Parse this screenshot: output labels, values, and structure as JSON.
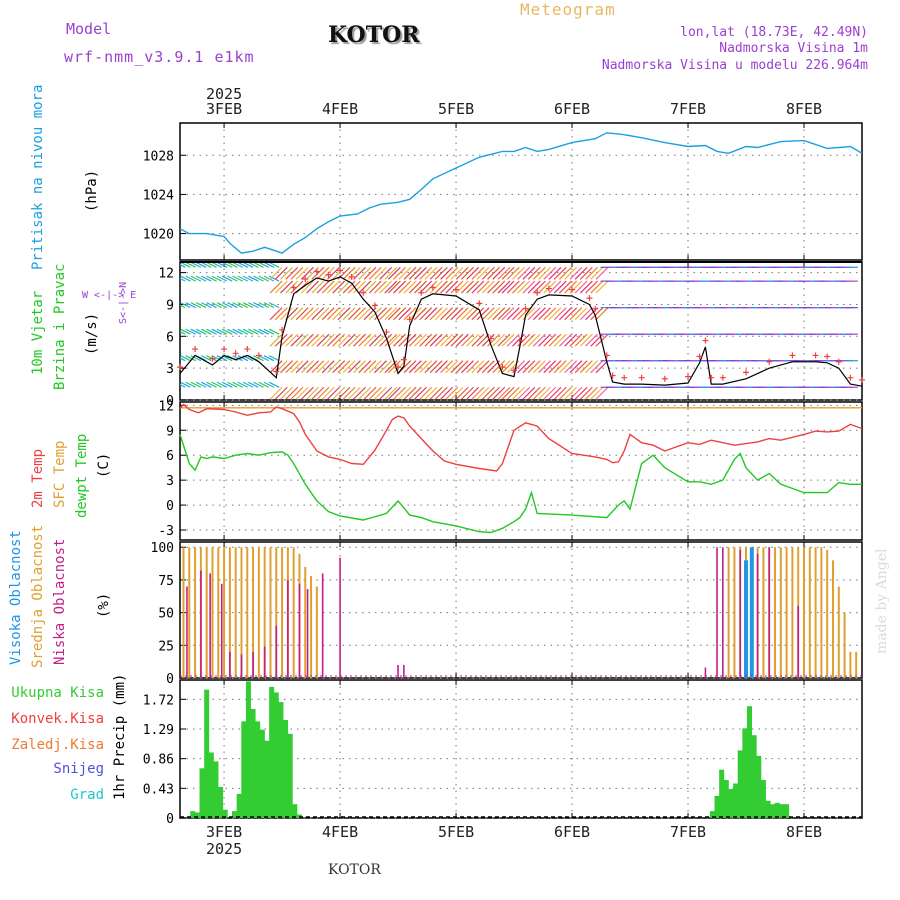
{
  "header": {
    "model_label": "Model",
    "model_name": "wrf-nmm_v3.9.1 e1km",
    "station": "KOTOR",
    "title": "Meteogram",
    "coords": "lon,lat (18.73E, 42.49N)",
    "elevation": "Nadmorska Visina 1m",
    "model_elevation": "Nadmorska Visina u modelu 226.964m",
    "footer_station": "KOTOR",
    "credit": "made by Angel"
  },
  "colors": {
    "pressure": "#1ca0e0",
    "temp2m": "#ef4040",
    "sfc_temp": "#e0a030",
    "dewpoint": "#22c822",
    "cloud_high": "#2096e6",
    "cloud_mid": "#e0a030",
    "cloud_low": "#c0208a",
    "precip_total": "#33cc33",
    "model_color": "#9a40d0",
    "title_color": "#e8b860",
    "info_color": "#9a40d0"
  },
  "chart_data": [
    {
      "type": "line",
      "panel": "pressure",
      "ylabel": "Pritisak na nivou mora",
      "unit": "(hPa)",
      "yticks": [
        1020,
        1024,
        1028
      ],
      "x_day_start": 2.62,
      "x_day_end": 8.5,
      "ylim": [
        1017.3,
        1031.3
      ],
      "x": [
        2.62,
        2.7,
        2.85,
        3.0,
        3.05,
        3.15,
        3.25,
        3.35,
        3.5,
        3.6,
        3.7,
        3.8,
        3.9,
        4.0,
        4.15,
        4.25,
        4.35,
        4.5,
        4.6,
        4.7,
        4.8,
        5.0,
        5.2,
        5.4,
        5.5,
        5.6,
        5.7,
        5.8,
        6.0,
        6.2,
        6.3,
        6.45,
        6.6,
        6.8,
        7.0,
        7.15,
        7.25,
        7.35,
        7.5,
        7.6,
        7.8,
        8.0,
        8.2,
        8.4,
        8.5
      ],
      "values": [
        1020.5,
        1020.0,
        1020.0,
        1019.7,
        1019.0,
        1018.0,
        1018.2,
        1018.6,
        1018.0,
        1018.9,
        1019.6,
        1020.5,
        1021.2,
        1021.8,
        1022.0,
        1022.6,
        1023.0,
        1023.2,
        1023.5,
        1024.5,
        1025.6,
        1026.7,
        1027.8,
        1028.4,
        1028.4,
        1028.8,
        1028.4,
        1028.6,
        1029.3,
        1029.7,
        1030.3,
        1030.1,
        1029.8,
        1029.3,
        1028.9,
        1029.0,
        1028.4,
        1028.2,
        1028.9,
        1028.8,
        1029.4,
        1029.5,
        1028.7,
        1028.9,
        1028.2
      ]
    },
    {
      "type": "line",
      "panel": "wind",
      "ylabel_1": "10m Vjetar",
      "ylabel_2": "Brzina i Pravac",
      "unit": "(m/s)",
      "compass": "W <-|-> E",
      "compass_vert": "S<-|->N",
      "yticks": [
        0,
        3,
        6,
        9,
        12
      ],
      "ylim": [
        0,
        13
      ],
      "x": [
        2.62,
        2.75,
        2.9,
        3.0,
        3.1,
        3.2,
        3.3,
        3.45,
        3.5,
        3.6,
        3.7,
        3.8,
        3.9,
        4.0,
        4.1,
        4.2,
        4.3,
        4.4,
        4.5,
        4.55,
        4.6,
        4.7,
        4.8,
        5.0,
        5.2,
        5.3,
        5.4,
        5.5,
        5.55,
        5.6,
        5.7,
        5.8,
        6.0,
        6.15,
        6.2,
        6.3,
        6.35,
        6.45,
        6.6,
        6.8,
        7.0,
        7.1,
        7.15,
        7.2,
        7.3,
        7.5,
        7.7,
        7.9,
        8.1,
        8.2,
        8.3,
        8.4,
        8.5
      ],
      "values": [
        2.5,
        4.2,
        3.3,
        4.2,
        3.8,
        4.2,
        3.6,
        2.1,
        6.0,
        10.0,
        10.8,
        11.5,
        11.2,
        11.6,
        11.0,
        9.5,
        8.3,
        5.8,
        2.5,
        3.2,
        7.0,
        9.5,
        10.0,
        9.8,
        8.5,
        5.2,
        2.5,
        2.2,
        5.0,
        8.0,
        9.5,
        9.9,
        9.8,
        9.0,
        8.0,
        3.6,
        1.7,
        1.5,
        1.5,
        1.4,
        1.6,
        3.5,
        5.0,
        1.5,
        1.5,
        2.0,
        3.0,
        3.6,
        3.6,
        3.5,
        3.0,
        1.5,
        1.3
      ]
    },
    {
      "type": "line",
      "panel": "temperature",
      "ylabel_a": "2m Temp",
      "ylabel_b": "SFC Temp",
      "ylabel_c": "dewpt Temp",
      "unit": "(C)",
      "yticks": [
        -3,
        0,
        3,
        6,
        9,
        12
      ],
      "ylim": [
        -4.2,
        12.4
      ],
      "sfc_temp": 11.7,
      "series": [
        {
          "x": [
            2.62,
            2.65,
            2.7,
            2.78,
            2.85,
            3.0,
            3.1,
            3.2,
            3.3,
            3.4,
            3.45,
            3.5,
            3.6,
            3.65,
            3.7,
            3.8,
            3.9,
            4.0,
            4.1,
            4.2,
            4.3,
            4.4,
            4.45,
            4.5,
            4.55,
            4.6,
            4.7,
            4.8,
            4.9,
            5.0,
            5.2,
            5.35,
            5.4,
            5.45,
            5.5,
            5.6,
            5.7,
            5.8,
            6.0,
            6.2,
            6.3,
            6.35,
            6.4,
            6.45,
            6.5,
            6.6,
            6.7,
            6.8,
            7.0,
            7.1,
            7.2,
            7.4,
            7.6,
            7.7,
            7.8,
            8.0,
            8.1,
            8.2,
            8.3,
            8.4,
            8.5
          ],
          "values": [
            11.6,
            12.1,
            11.5,
            11.1,
            11.6,
            11.5,
            11.2,
            10.8,
            11.1,
            11.2,
            11.8,
            11.6,
            11.0,
            10.0,
            8.5,
            6.5,
            5.8,
            5.5,
            5.0,
            4.9,
            6.6,
            9.0,
            10.3,
            10.7,
            10.5,
            9.5,
            8.0,
            6.5,
            5.3,
            4.9,
            4.4,
            4.1,
            5.0,
            7.0,
            9.0,
            9.9,
            9.5,
            8.0,
            6.2,
            5.8,
            5.5,
            5.1,
            5.2,
            6.5,
            8.5,
            7.5,
            7.2,
            6.5,
            7.5,
            7.3,
            7.8,
            7.2,
            7.6,
            8.0,
            7.8,
            8.5,
            8.9,
            8.8,
            8.9,
            9.7,
            9.2
          ]
        },
        {
          "x": [
            2.62,
            2.7,
            2.75,
            2.8,
            2.85,
            2.9,
            3.0,
            3.1,
            3.2,
            3.3,
            3.4,
            3.5,
            3.55,
            3.6,
            3.7,
            3.8,
            3.9,
            4.0,
            4.2,
            4.4,
            4.5,
            4.6,
            4.7,
            4.8,
            5.0,
            5.2,
            5.3,
            5.4,
            5.5,
            5.55,
            5.6,
            5.65,
            5.7,
            6.0,
            6.3,
            6.4,
            6.45,
            6.5,
            6.6,
            6.7,
            6.8,
            7.0,
            7.1,
            7.2,
            7.3,
            7.4,
            7.45,
            7.5,
            7.6,
            7.7,
            7.8,
            8.0,
            8.2,
            8.3,
            8.4,
            8.5
          ],
          "values": [
            8.5,
            5.0,
            4.2,
            5.8,
            5.6,
            5.8,
            5.6,
            6.0,
            6.2,
            6.0,
            6.3,
            6.4,
            6.0,
            5.0,
            2.5,
            0.5,
            -0.8,
            -1.3,
            -1.8,
            -1.0,
            0.5,
            -1.2,
            -1.5,
            -2.0,
            -2.5,
            -3.2,
            -3.3,
            -2.8,
            -2.0,
            -1.5,
            -0.5,
            1.5,
            -1.0,
            -1.2,
            -1.5,
            0.0,
            0.5,
            -0.5,
            5.0,
            6.0,
            4.5,
            2.8,
            2.8,
            2.5,
            3.0,
            5.5,
            6.2,
            4.5,
            3.0,
            3.8,
            2.5,
            1.5,
            1.5,
            2.7,
            2.5,
            2.5
          ]
        }
      ]
    },
    {
      "type": "bar",
      "panel": "cloud",
      "ylabel_a": "Visoka Oblacnost",
      "ylabel_b": "Srednja Oblacnost",
      "ylabel_c": "Niska Oblacnost",
      "unit": "(%)",
      "yticks": [
        0,
        25,
        50,
        75,
        100
      ],
      "ylim": [
        0,
        104
      ],
      "mid_x": [
        2.65,
        2.7,
        2.75,
        2.8,
        2.85,
        2.9,
        2.95,
        3.0,
        3.05,
        3.1,
        3.15,
        3.2,
        3.25,
        3.3,
        3.35,
        3.4,
        3.45,
        3.5,
        3.55,
        3.6,
        3.65,
        3.7,
        3.75,
        3.8,
        7.35,
        7.4,
        7.45,
        7.5,
        7.55,
        7.6,
        7.65,
        7.7,
        7.75,
        7.8,
        7.85,
        7.9,
        7.95,
        8.0,
        8.05,
        8.1,
        8.15,
        8.2,
        8.25,
        8.3,
        8.35,
        8.4,
        8.45
      ],
      "mid_values": [
        100,
        100,
        100,
        100,
        100,
        100,
        100,
        100,
        100,
        100,
        100,
        100,
        100,
        100,
        100,
        100,
        100,
        100,
        100,
        100,
        95,
        85,
        78,
        70,
        100,
        100,
        100,
        100,
        100,
        100,
        100,
        100,
        100,
        100,
        100,
        100,
        100,
        100,
        100,
        100,
        100,
        98,
        90,
        70,
        50,
        20,
        20
      ],
      "low_x": [
        2.68,
        2.8,
        2.88,
        2.98,
        3.05,
        3.15,
        3.25,
        3.35,
        3.45,
        3.55,
        3.65,
        3.72,
        3.85,
        4.0,
        4.5,
        4.55,
        7.15,
        7.25,
        7.3,
        7.45,
        7.55,
        7.6,
        7.7,
        7.95
      ],
      "low_values": [
        70,
        82,
        80,
        72,
        20,
        18,
        20,
        24,
        40,
        75,
        72,
        68,
        80,
        92,
        10,
        10,
        8,
        100,
        100,
        98,
        98,
        95,
        100,
        55
      ],
      "high_x": [
        7.5,
        7.55
      ],
      "high_values": [
        90,
        100
      ]
    },
    {
      "type": "bar",
      "panel": "precip",
      "legend": [
        "Ukupna Kisa",
        "Konvek.Kisa",
        "Zaledj.Kisa",
        "Snijeg",
        "Grad"
      ],
      "legend_colors": [
        "#33cc33",
        "#ef4040",
        "#f07a30",
        "#5050e0",
        "#20c8c8"
      ],
      "ylabel": "1hr Precip (mm)",
      "yticks": [
        0,
        0.43,
        0.86,
        1.29,
        1.72
      ],
      "ylim": [
        0,
        2.0
      ],
      "x": [
        2.73,
        2.77,
        2.81,
        2.85,
        2.89,
        2.93,
        2.97,
        3.01,
        3.09,
        3.13,
        3.17,
        3.21,
        3.25,
        3.29,
        3.33,
        3.37,
        3.41,
        3.45,
        3.49,
        3.53,
        3.57,
        3.61,
        3.65,
        7.21,
        7.25,
        7.29,
        7.33,
        7.37,
        7.41,
        7.45,
        7.49,
        7.53,
        7.57,
        7.61,
        7.65,
        7.69,
        7.73,
        7.77,
        7.81,
        7.85
      ],
      "values": [
        0.1,
        0.08,
        0.72,
        1.86,
        0.95,
        0.82,
        0.45,
        0.12,
        0.1,
        0.35,
        1.4,
        1.98,
        1.58,
        1.4,
        1.28,
        1.12,
        1.9,
        1.82,
        1.68,
        1.42,
        1.22,
        0.2,
        0.05,
        0.1,
        0.32,
        0.7,
        0.55,
        0.42,
        0.5,
        0.98,
        1.3,
        1.62,
        1.2,
        0.9,
        0.55,
        0.25,
        0.2,
        0.22,
        0.2,
        0.2
      ]
    }
  ],
  "axis": {
    "top_year": "2025",
    "bottom_year": "2025",
    "day_labels": [
      "3FEB",
      "4FEB",
      "5FEB",
      "6FEB",
      "7FEB",
      "8FEB"
    ],
    "day_values": [
      3,
      4,
      5,
      6,
      7,
      8
    ]
  }
}
